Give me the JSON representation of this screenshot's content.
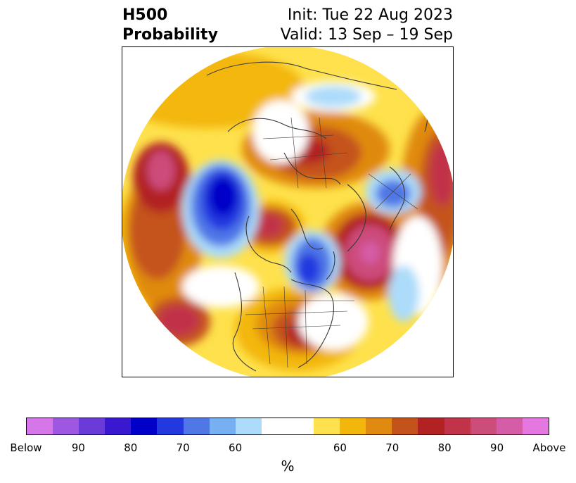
{
  "header": {
    "title_line1": "H500",
    "title_line2": "Probability",
    "init": "Init: Tue 22 Aug 2023",
    "valid": "Valid: 13 Sep – 19 Sep"
  },
  "map": {
    "projection": "north-polar-stereographic",
    "background_color": "#ffffff",
    "coastline_color": "#3a3a3a"
  },
  "colorbar": {
    "unit_label": "%",
    "colors": [
      "#d577e8",
      "#9d57e0",
      "#6b3bd9",
      "#3a18d0",
      "#0000c8",
      "#2339e0",
      "#4f77e6",
      "#76b0f2",
      "#acdcfa",
      "#ffffff",
      "#ffffff",
      "#fee14c",
      "#f3b70b",
      "#e08a11",
      "#c4531b",
      "#b22222",
      "#c13348",
      "#cc4c7a",
      "#d55ca7",
      "#e577e0"
    ],
    "ticks": [
      "Below",
      "90",
      "80",
      "70",
      "60",
      "60",
      "70",
      "80",
      "90",
      "Above"
    ]
  }
}
